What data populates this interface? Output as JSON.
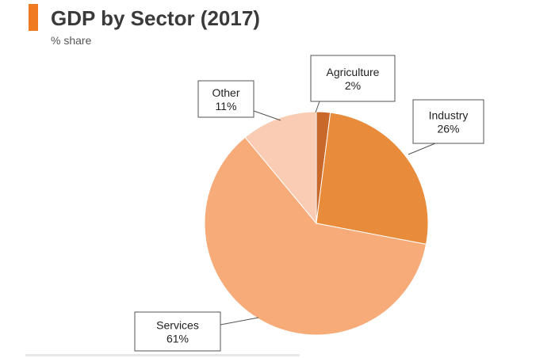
{
  "header": {
    "title": "GDP by Sector (2017)",
    "subtitle": "% share",
    "accent_color": "#f07a22"
  },
  "chart_data": {
    "type": "pie",
    "title": "GDP by Sector (2017)",
    "subtitle": "% share",
    "unit": "%",
    "slices": [
      {
        "label": "Agriculture",
        "value": 2,
        "value_label": "2%",
        "color": "#c8692b"
      },
      {
        "label": "Industry",
        "value": 26,
        "value_label": "26%",
        "color": "#e88c3c"
      },
      {
        "label": "Services",
        "value": 61,
        "value_label": "61%",
        "color": "#f7ab78"
      },
      {
        "label": "Other",
        "value": 11,
        "value_label": "11%",
        "color": "#f9ccb3"
      }
    ],
    "start_angle": "12 o'clock, clockwise",
    "legend": "none (callout labels)"
  }
}
